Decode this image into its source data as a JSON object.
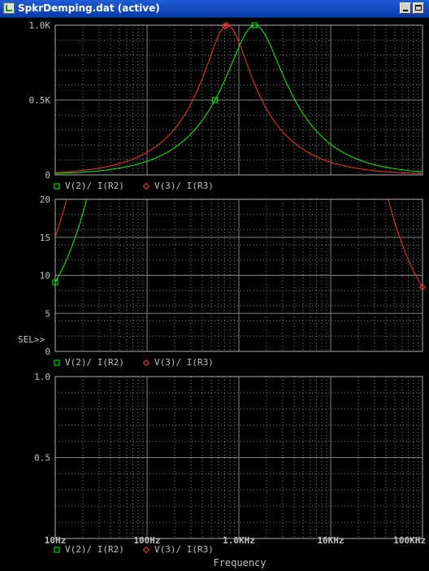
{
  "window": {
    "title": "SpkrDemping.dat (active)",
    "minimize_label": "",
    "maximize_label": ""
  },
  "colors": {
    "background": "#000000",
    "grid": "#808080",
    "axis_text": "#c0c0c0",
    "series1": "#00ff00",
    "series2": "#ff3030"
  },
  "chart_data": [
    {
      "type": "line",
      "x_scale": "log",
      "xlim": [
        10,
        100000
      ],
      "ylim": [
        0,
        1000
      ],
      "yticks": [
        0,
        500,
        1000
      ],
      "ytick_labels": [
        "0",
        "0.5K",
        "1.0K"
      ],
      "grid": true,
      "series": [
        {
          "name": "V(2)/ I(R2)",
          "color": "#00ff00",
          "marker": "square",
          "model": {
            "R": 1000,
            "f0": 1500,
            "peak": 650
          }
        },
        {
          "name": "V(3)/ I(R3)",
          "color": "#ff3030",
          "marker": "diamond",
          "model": {
            "R": 1000,
            "f0": 750,
            "peak": 560
          }
        }
      ]
    },
    {
      "type": "line",
      "x_scale": "log",
      "xlim": [
        10,
        100000
      ],
      "ylim": [
        0,
        20
      ],
      "yticks": [
        0,
        5,
        10,
        15,
        20
      ],
      "ytick_labels": [
        "0",
        "5",
        "10",
        "15",
        "20"
      ],
      "grid": true,
      "selected_marker": "SEL>>",
      "series": [
        {
          "name": "V(2)/ I(R2)",
          "color": "#00ff00",
          "marker": "square",
          "model": {
            "R": 1000,
            "f0": 1500,
            "peak": 650
          }
        },
        {
          "name": "V(3)/ I(R3)",
          "color": "#ff3030",
          "marker": "diamond",
          "model": {
            "R": 1000,
            "f0": 750,
            "peak": 560
          }
        }
      ]
    },
    {
      "type": "line",
      "x_scale": "log",
      "xlim": [
        10,
        100000
      ],
      "ylim": [
        0,
        1.0
      ],
      "yticks": [
        0.5,
        1.0
      ],
      "ytick_labels": [
        "0.5",
        "1.0"
      ],
      "grid": true,
      "xtick_values": [
        10,
        100,
        1000,
        10000,
        100000
      ],
      "xtick_labels": [
        "10Hz",
        "100Hz",
        "1.0KHz",
        "10KHz",
        "100KHz"
      ],
      "xlabel": "Frequency",
      "series": [
        {
          "name": "V(2)/ I(R2)",
          "color": "#00ff00",
          "marker": "square",
          "model": {
            "R": 1000,
            "f0": 1500,
            "peak": 650
          }
        },
        {
          "name": "V(3)/ I(R3)",
          "color": "#ff3030",
          "marker": "diamond",
          "model": {
            "R": 1000,
            "f0": 750,
            "peak": 560
          }
        }
      ]
    }
  ]
}
